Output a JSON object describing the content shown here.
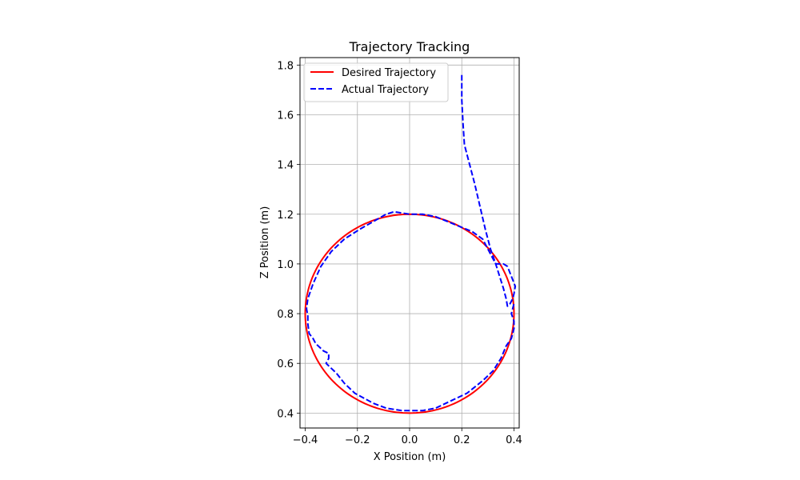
{
  "chart_data": {
    "type": "line",
    "title": "Trajectory Tracking",
    "xlabel": "X Position (m)",
    "ylabel": "Z Position (m)",
    "xlim": [
      -0.42,
      0.42
    ],
    "ylim": [
      0.34,
      1.83
    ],
    "xticks": [
      -0.4,
      -0.2,
      0.0,
      0.2,
      0.4
    ],
    "xtick_labels": [
      "−0.4",
      "−0.2",
      "0.0",
      "0.2",
      "0.4"
    ],
    "yticks": [
      0.4,
      0.6,
      0.8,
      1.0,
      1.2,
      1.4,
      1.6,
      1.8
    ],
    "ytick_labels": [
      "0.4",
      "0.6",
      "0.8",
      "1.0",
      "1.2",
      "1.4",
      "1.6",
      "1.8"
    ],
    "grid": true,
    "legend_position": "top-left",
    "aspect": "equal",
    "series": [
      {
        "name": "Desired Trajectory",
        "color": "#ff0000",
        "style": "solid",
        "shape": "circle",
        "center": [
          0.0,
          0.8
        ],
        "radius": 0.4
      },
      {
        "name": "Actual Trajectory",
        "color": "#0000ff",
        "style": "dashed",
        "points": [
          [
            0.2,
            1.76
          ],
          [
            0.2,
            1.66
          ],
          [
            0.205,
            1.56
          ],
          [
            0.21,
            1.48
          ],
          [
            0.23,
            1.4
          ],
          [
            0.25,
            1.32
          ],
          [
            0.27,
            1.23
          ],
          [
            0.29,
            1.14
          ],
          [
            0.31,
            1.06
          ],
          [
            0.33,
            1.0
          ],
          [
            0.345,
            0.95
          ],
          [
            0.36,
            0.9
          ],
          [
            0.37,
            0.86
          ],
          [
            0.375,
            0.83
          ],
          [
            0.385,
            0.84
          ],
          [
            0.395,
            0.86
          ],
          [
            0.4,
            0.88
          ],
          [
            0.405,
            0.91
          ],
          [
            0.39,
            0.95
          ],
          [
            0.375,
            0.99
          ],
          [
            0.36,
            1.0
          ],
          [
            0.33,
            1.0
          ],
          [
            0.31,
            1.04
          ],
          [
            0.28,
            1.1
          ],
          [
            0.24,
            1.13
          ],
          [
            0.17,
            1.16
          ],
          [
            0.1,
            1.19
          ],
          [
            0.05,
            1.2
          ],
          [
            0.0,
            1.2
          ],
          [
            -0.03,
            1.205
          ],
          [
            -0.06,
            1.21
          ],
          [
            -0.09,
            1.2
          ],
          [
            -0.14,
            1.17
          ],
          [
            -0.19,
            1.14
          ],
          [
            -0.25,
            1.1
          ],
          [
            -0.3,
            1.05
          ],
          [
            -0.34,
            0.99
          ],
          [
            -0.37,
            0.92
          ],
          [
            -0.39,
            0.86
          ],
          [
            -0.395,
            0.82
          ],
          [
            -0.39,
            0.79
          ],
          [
            -0.39,
            0.76
          ],
          [
            -0.385,
            0.72
          ],
          [
            -0.37,
            0.7
          ],
          [
            -0.36,
            0.68
          ],
          [
            -0.33,
            0.65
          ],
          [
            -0.31,
            0.64
          ],
          [
            -0.31,
            0.62
          ],
          [
            -0.32,
            0.6
          ],
          [
            -0.3,
            0.58
          ],
          [
            -0.28,
            0.56
          ],
          [
            -0.25,
            0.52
          ],
          [
            -0.21,
            0.48
          ],
          [
            -0.14,
            0.44
          ],
          [
            -0.09,
            0.42
          ],
          [
            -0.03,
            0.41
          ],
          [
            0.0,
            0.41
          ],
          [
            0.05,
            0.41
          ],
          [
            0.1,
            0.42
          ],
          [
            0.16,
            0.45
          ],
          [
            0.22,
            0.48
          ],
          [
            0.28,
            0.53
          ],
          [
            0.32,
            0.57
          ],
          [
            0.35,
            0.62
          ],
          [
            0.37,
            0.67
          ],
          [
            0.39,
            0.7
          ],
          [
            0.4,
            0.74
          ],
          [
            0.4,
            0.77
          ],
          [
            0.39,
            0.8
          ],
          [
            0.4,
            0.84
          ]
        ]
      }
    ]
  }
}
